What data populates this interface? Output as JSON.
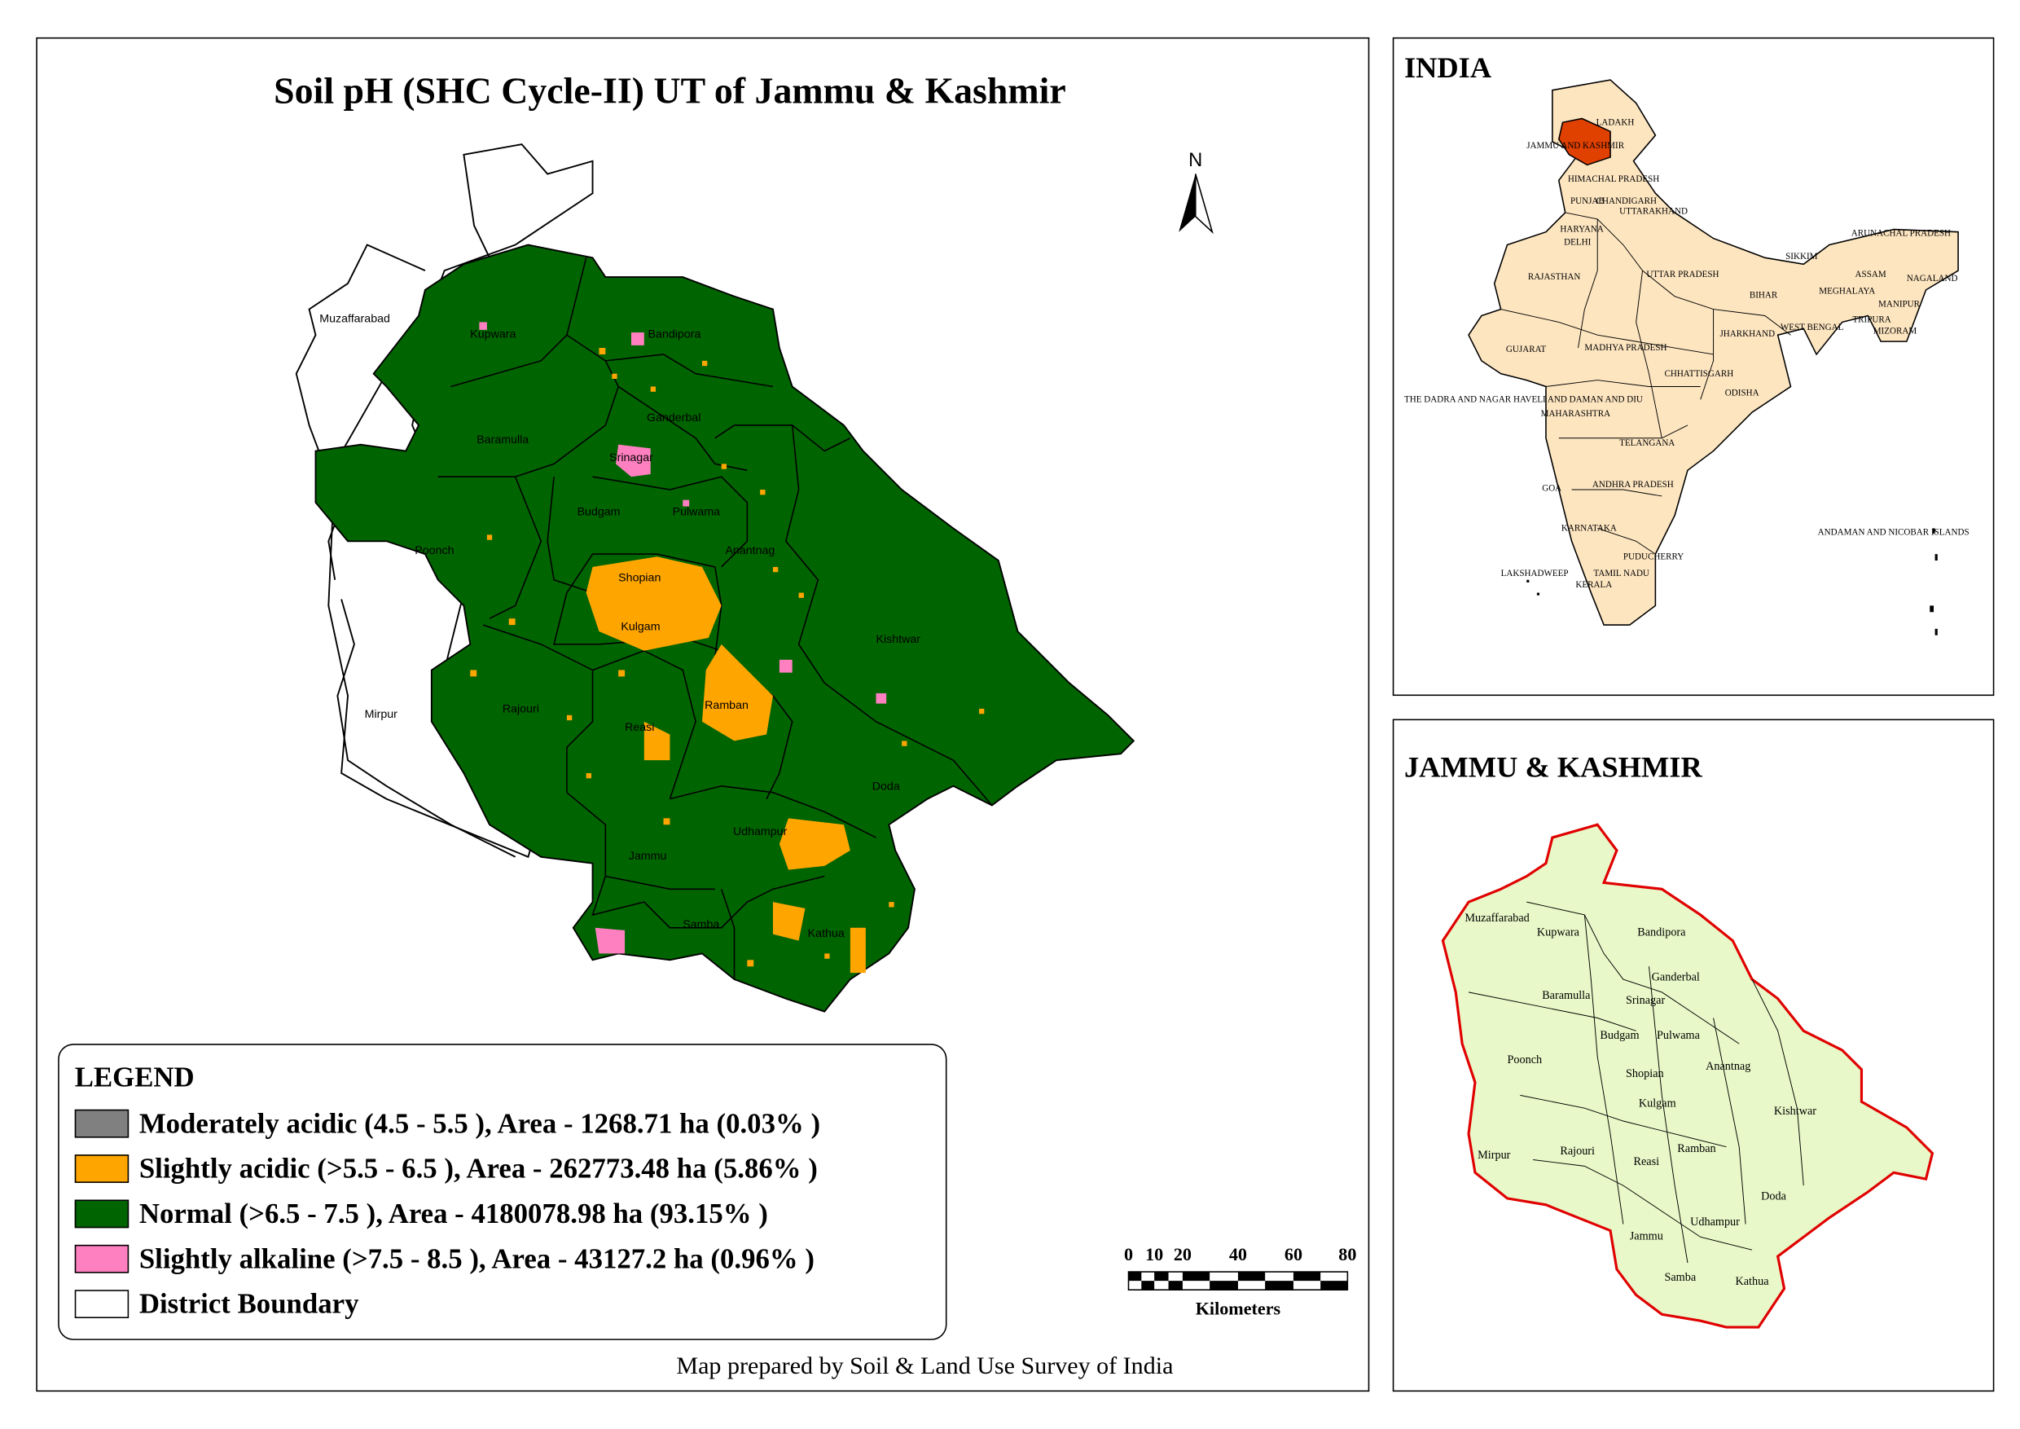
{
  "main_map": {
    "title": "Soil pH (SHC Cycle-II) UT of Jammu & Kashmir",
    "north_label": "N",
    "district_labels": [
      "Muzaffarabad",
      "Kupwara",
      "Bandipora",
      "Ganderbal",
      "Baramulla",
      "Srinagar",
      "Budgam",
      "Pulwama",
      "Poonch",
      "Anantnag",
      "Shopian",
      "Kulgam",
      "Kishtwar",
      "Mirpur",
      "Rajouri",
      "Reasi",
      "Ramban",
      "Doda",
      "Udhampur",
      "Jammu",
      "Samba",
      "Kathua"
    ],
    "scale_bar": {
      "ticks": [
        "0",
        "10",
        "20",
        "40",
        "60",
        "80"
      ],
      "unit": "Kilometers"
    },
    "credit": "Map prepared by Soil & Land Use Survey of India"
  },
  "legend": {
    "heading": "LEGEND",
    "items": [
      {
        "label": "Moderately acidic  (4.5 - 5.5 ), Area - 1268.71  ha (0.03% )",
        "color": "#808080"
      },
      {
        "label": "Slightly acidic  (>5.5 - 6.5 ), Area - 262773.48  ha (5.86% )",
        "color": "#FFA500"
      },
      {
        "label": "Normal  (>6.5 - 7.5 ), Area - 4180078.98  ha (93.15% )",
        "color": "#006400"
      },
      {
        "label": "Slightly alkaline  (>7.5 - 8.5 ), Area - 43127.2  ha (0.96% )",
        "color": "#FF80C0"
      },
      {
        "label": "District Boundary",
        "color": "#FFFFFF"
      }
    ]
  },
  "india_inset": {
    "title": "INDIA",
    "highlight_color": "#E04000",
    "fill_color": "#FDE5C0",
    "labels": [
      "LADAKH",
      "JAMMU AND KASHMIR",
      "HIMACHAL PRADESH",
      "PUNJAB",
      "CHANDIGARH",
      "UTTARAKHAND",
      "HARYANA",
      "DELHI",
      "ARUNACHAL PRADESH",
      "SIKKIM",
      "ASSAM",
      "NAGALAND",
      "RAJASTHAN",
      "UTTAR PRADESH",
      "BIHAR",
      "MEGHALAYA",
      "MANIPUR",
      "TRIPURA",
      "MIZORAM",
      "WEST BENGAL",
      "JHARKHAND",
      "GUJARAT",
      "MADHYA PRADESH",
      "CHHATTISGARH",
      "ODISHA",
      "THE DADRA AND NAGAR HAVELI AND DAMAN AND DIU",
      "MAHARASHTRA",
      "TELANGANA",
      "GOA",
      "ANDHRA PRADESH",
      "KARNATAKA",
      "ANDAMAN AND NICOBAR ISLANDS",
      "PUDUCHERRY",
      "LAKSHADWEEP",
      "TAMIL NADU",
      "KERALA"
    ]
  },
  "jk_inset": {
    "title": "JAMMU & KASHMIR",
    "fill_color": "#E8F8C8",
    "border_color": "#E00000",
    "labels": [
      "Muzaffarabad",
      "Kupwara",
      "Bandipora",
      "Ganderbal",
      "Baramulla",
      "Srinagar",
      "Budgam",
      "Pulwama",
      "Poonch",
      "Anantnag",
      "Shopian",
      "Kulgam",
      "Kishtwar",
      "Mirpur",
      "Rajouri",
      "Reasi",
      "Ramban",
      "Doda",
      "Udhampur",
      "Jammu",
      "Samba",
      "Kathua"
    ]
  }
}
